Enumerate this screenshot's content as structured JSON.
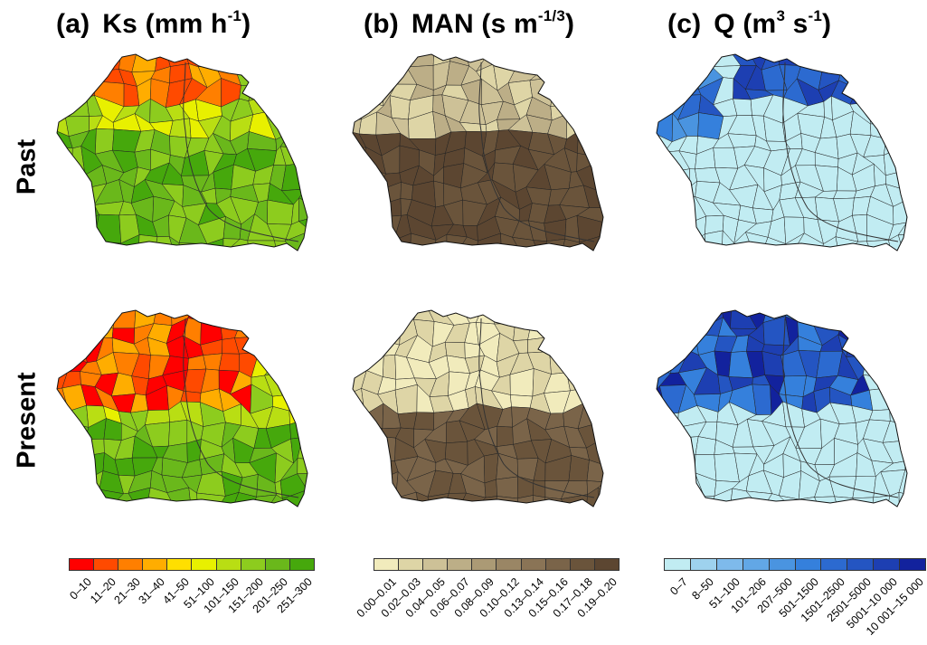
{
  "panels": [
    {
      "tag": "(a)",
      "name": "Ks",
      "unit_pre": "(mm h",
      "unit_sup": "-1",
      "unit_post": ")"
    },
    {
      "tag": "(b)",
      "name": "MAN",
      "unit_pre": "(s m",
      "unit_sup": "-1/3",
      "unit_post": ")"
    },
    {
      "tag": "(c)",
      "name": "Q",
      "unit_pre": "(m",
      "unit_sup": "3",
      "unit_mid": " s",
      "unit_sup2": "-1",
      "unit_post": ")"
    }
  ],
  "rows": [
    "Past",
    "Present"
  ],
  "legends": {
    "ks": {
      "labels": [
        "0–10",
        "11–20",
        "21–30",
        "31–40",
        "41–50",
        "51–100",
        "101–150",
        "151–200",
        "201–250",
        "251–300"
      ],
      "colors": [
        "#ff0000",
        "#ff4a00",
        "#ff7f00",
        "#ffad00",
        "#ffdf00",
        "#e8f000",
        "#b9de13",
        "#8dcc1e",
        "#6ab81b",
        "#46a80c"
      ]
    },
    "man": {
      "labels": [
        "0.00–0.01",
        "0.02–0.03",
        "0.04–0.05",
        "0.06–0.07",
        "0.08–0.09",
        "0.10–0.12",
        "0.13–0.14",
        "0.15–0.16",
        "0.17–0.18",
        "0.19–0.20"
      ],
      "colors": [
        "#f1ebbc",
        "#ded5a6",
        "#cdc197",
        "#bcae87",
        "#ab9a75",
        "#9a8665",
        "#8a7456",
        "#7a6449",
        "#6a543b",
        "#5c4631"
      ]
    },
    "q": {
      "labels": [
        "0–7",
        "8–50",
        "51–100",
        "101–206",
        "207–500",
        "501–1500",
        "1501–2500",
        "2501–5000",
        "5001–10 000",
        "10 001–15 000"
      ],
      "colors": [
        "#c1ecf2",
        "#9ed2ee",
        "#7ebaeb",
        "#62a7e6",
        "#4a94e0",
        "#3580dc",
        "#2c6ad0",
        "#2455c2",
        "#1d3fb2",
        "#12229d"
      ]
    }
  }
}
